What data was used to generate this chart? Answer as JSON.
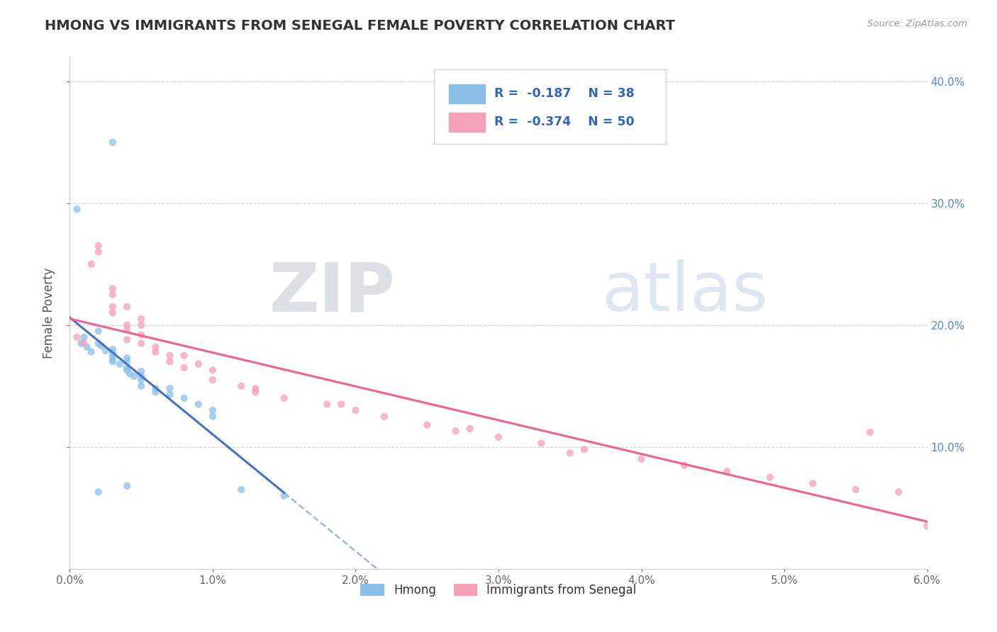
{
  "title": "HMONG VS IMMIGRANTS FROM SENEGAL FEMALE POVERTY CORRELATION CHART",
  "source": "Source: ZipAtlas.com",
  "ylabel": "Female Poverty",
  "xmin": 0.0,
  "xmax": 0.06,
  "ymin": 0.0,
  "ymax": 0.42,
  "right_yticks": [
    0.1,
    0.2,
    0.3,
    0.4
  ],
  "right_yticklabels": [
    "10.0%",
    "20.0%",
    "30.0%",
    "40.0%"
  ],
  "hmong_color": "#8BBFE8",
  "senegal_color": "#F4A0B8",
  "hmong_line_color": "#4472C4",
  "senegal_line_color": "#F06090",
  "dashed_line_color": "#A0B8D8",
  "R_hmong": -0.187,
  "N_hmong": 38,
  "R_senegal": -0.374,
  "N_senegal": 50,
  "watermark_zip": "ZIP",
  "watermark_atlas": "atlas",
  "background_color": "#FFFFFF",
  "grid_color": "#C8D4E8",
  "hmong_x": [
    0.0005,
    0.0008,
    0.001,
    0.0012,
    0.0015,
    0.002,
    0.002,
    0.0022,
    0.0025,
    0.003,
    0.003,
    0.003,
    0.003,
    0.003,
    0.0035,
    0.004,
    0.004,
    0.004,
    0.004,
    0.0042,
    0.0045,
    0.005,
    0.005,
    0.005,
    0.005,
    0.006,
    0.006,
    0.007,
    0.007,
    0.008,
    0.009,
    0.01,
    0.01,
    0.012,
    0.015,
    0.003,
    0.004,
    0.002
  ],
  "hmong_y": [
    0.295,
    0.185,
    0.19,
    0.182,
    0.178,
    0.195,
    0.185,
    0.183,
    0.179,
    0.18,
    0.177,
    0.175,
    0.172,
    0.17,
    0.168,
    0.173,
    0.17,
    0.165,
    0.163,
    0.16,
    0.158,
    0.162,
    0.158,
    0.155,
    0.15,
    0.148,
    0.145,
    0.148,
    0.143,
    0.14,
    0.135,
    0.13,
    0.125,
    0.065,
    0.06,
    0.35,
    0.068,
    0.063
  ],
  "senegal_x": [
    0.0005,
    0.001,
    0.0015,
    0.002,
    0.002,
    0.003,
    0.003,
    0.003,
    0.003,
    0.004,
    0.004,
    0.004,
    0.004,
    0.005,
    0.005,
    0.005,
    0.005,
    0.006,
    0.006,
    0.007,
    0.007,
    0.008,
    0.008,
    0.009,
    0.01,
    0.01,
    0.012,
    0.013,
    0.015,
    0.018,
    0.02,
    0.022,
    0.025,
    0.027,
    0.03,
    0.033,
    0.036,
    0.04,
    0.043,
    0.046,
    0.049,
    0.052,
    0.055,
    0.056,
    0.058,
    0.06,
    0.035,
    0.028,
    0.019,
    0.013
  ],
  "senegal_y": [
    0.19,
    0.185,
    0.25,
    0.265,
    0.26,
    0.23,
    0.225,
    0.215,
    0.21,
    0.215,
    0.2,
    0.196,
    0.188,
    0.205,
    0.2,
    0.192,
    0.185,
    0.182,
    0.178,
    0.175,
    0.17,
    0.175,
    0.165,
    0.168,
    0.163,
    0.155,
    0.15,
    0.148,
    0.14,
    0.135,
    0.13,
    0.125,
    0.118,
    0.113,
    0.108,
    0.103,
    0.098,
    0.09,
    0.085,
    0.08,
    0.075,
    0.07,
    0.065,
    0.112,
    0.063,
    0.035,
    0.095,
    0.115,
    0.135,
    0.145
  ]
}
